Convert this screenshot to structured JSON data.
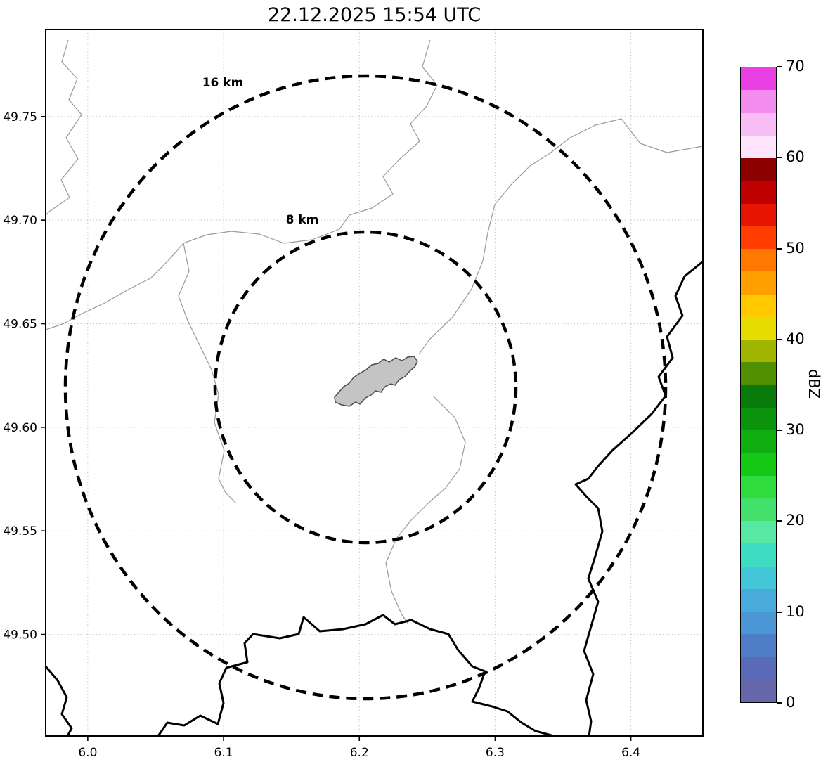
{
  "chart_data": {
    "type": "heatmap",
    "title": "22.12.2025 15:54 UTC",
    "xlabel": "",
    "ylabel": "",
    "x_ticks": [
      6.0,
      6.1,
      6.2,
      6.3,
      6.4
    ],
    "x_tick_labels": [
      "6.0",
      "6.1",
      "6.2",
      "6.3",
      "6.4"
    ],
    "y_ticks": [
      49.5,
      49.55,
      49.6,
      49.65,
      49.7,
      49.75
    ],
    "y_tick_labels": [
      "49.50",
      "49.55",
      "49.60",
      "49.65",
      "49.70",
      "49.75"
    ],
    "xlim": [
      5.969,
      6.453
    ],
    "ylim": [
      49.451,
      49.792
    ],
    "grid": true,
    "echoes": [],
    "range_rings": {
      "center_lon": 6.204,
      "center_lat": 49.619,
      "rings": [
        {
          "label": "16 km",
          "radius_km": 16
        },
        {
          "label": "8 km",
          "radius_km": 8
        }
      ]
    },
    "colorbar": {
      "label": "dBZ",
      "min": 0,
      "max": 70,
      "ticks": [
        0,
        10,
        20,
        30,
        40,
        50,
        60,
        70
      ],
      "tick_labels": [
        "0",
        "10",
        "20",
        "30",
        "40",
        "50",
        "60",
        "70"
      ],
      "segments_top_to_bottom": [
        "#e93fe3",
        "#f38cef",
        "#f9bdf6",
        "#fde4fb",
        "#8c0000",
        "#be0000",
        "#e61400",
        "#ff3c00",
        "#ff7800",
        "#ffa000",
        "#ffc800",
        "#e6dc00",
        "#a0b400",
        "#4f8f00",
        "#0a7a0a",
        "#0b930b",
        "#0fae10",
        "#16c816",
        "#2edc3e",
        "#44e06c",
        "#57e8a4",
        "#3fdcc4",
        "#42c6d8",
        "#48abdc",
        "#4b96d4",
        "#4f7ec6",
        "#5b6ab8",
        "#6666aa"
      ]
    }
  }
}
